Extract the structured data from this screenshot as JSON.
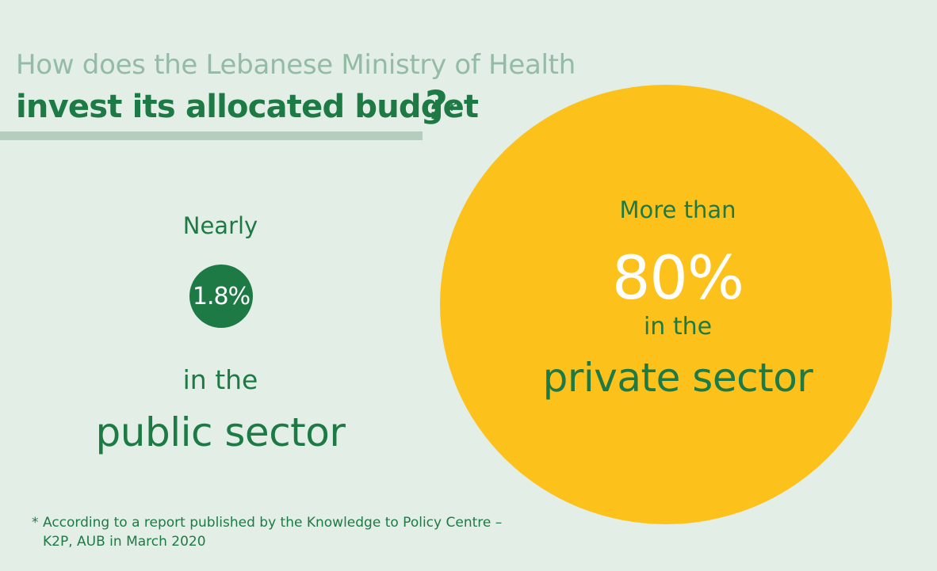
{
  "header": {
    "line1": "How does the Lebanese Ministry of Health",
    "line2": "invest its allocated budget",
    "question_mark": "?",
    "asterisk": "*"
  },
  "public": {
    "qualifier": "Nearly",
    "percent": "1.8%",
    "in_the": "in the",
    "sector": "public sector"
  },
  "private": {
    "qualifier": "More than",
    "percent": "80%",
    "in_the": "in the",
    "sector": "private sector"
  },
  "footnote": {
    "marker": "*",
    "line1": "According to a report published by the Knowledge to Policy Centre –",
    "line2": "K2P, AUB in March 2020"
  },
  "colors": {
    "background": "#e3eee7",
    "green": "#1e7a45",
    "light_green": "#94bba5",
    "yellow": "#fdc11b"
  }
}
